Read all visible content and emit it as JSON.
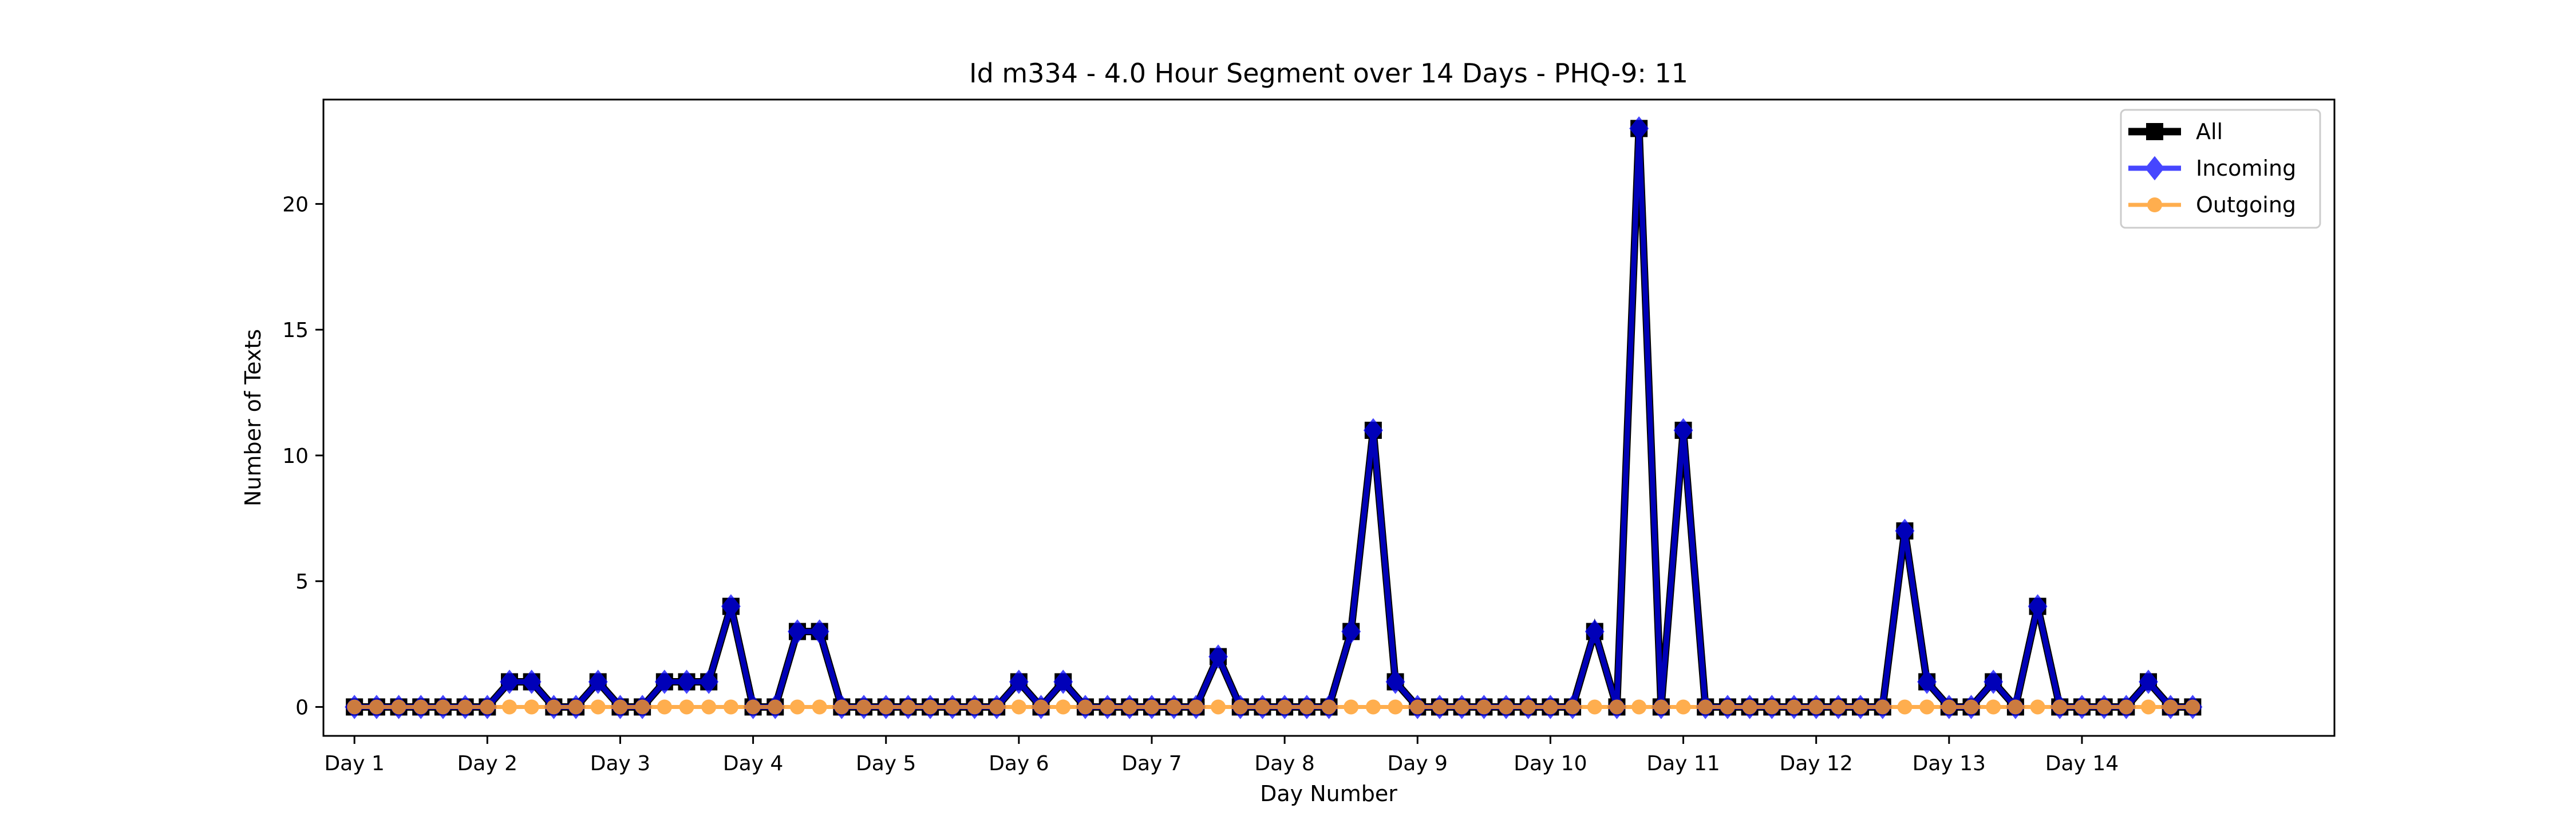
{
  "chart_data": {
    "type": "line",
    "title": "Id m334 - 4.0 Hour Segment over 14 Days - PHQ-9: 11",
    "xlabel": "Day Number",
    "ylabel": "Number of Texts",
    "xlim": [
      -1.4,
      89.4
    ],
    "ylim": [
      -1.15,
      24.15
    ],
    "x_ticks": [
      0,
      6,
      12,
      18,
      24,
      30,
      36,
      42,
      48,
      54,
      60,
      66,
      72,
      78
    ],
    "x_tick_labels": [
      "Day 1",
      "Day 2",
      "Day 3",
      "Day 4",
      "Day 5",
      "Day 6",
      "Day 7",
      "Day 8",
      "Day 9",
      "Day 10",
      "Day 11",
      "Day 12",
      "Day 13",
      "Day 14"
    ],
    "y_ticks": [
      0,
      5,
      10,
      15,
      20
    ],
    "y_tick_labels": [
      "0",
      "5",
      "10",
      "15",
      "20"
    ],
    "grid": false,
    "legend_position": "top-right",
    "series": [
      {
        "name": "All",
        "color": "#000000",
        "marker": "square",
        "values": [
          0,
          0,
          0,
          0,
          0,
          0,
          0,
          1,
          1,
          0,
          0,
          1,
          0,
          0,
          1,
          1,
          1,
          4,
          0,
          0,
          3,
          3,
          0,
          0,
          0,
          0,
          0,
          0,
          0,
          0,
          1,
          0,
          1,
          0,
          0,
          0,
          0,
          0,
          0,
          2,
          0,
          0,
          0,
          0,
          0,
          3,
          11,
          1,
          0,
          0,
          0,
          0,
          0,
          0,
          0,
          0,
          3,
          0,
          23,
          0,
          11,
          0,
          0,
          0,
          0,
          0,
          0,
          0,
          0,
          0,
          7,
          1,
          0,
          0,
          1,
          0,
          4,
          0,
          0,
          0,
          0,
          1,
          0,
          0
        ]
      },
      {
        "name": "Incoming",
        "color": "#0000ff",
        "marker": "diamond",
        "values": [
          0,
          0,
          0,
          0,
          0,
          0,
          0,
          1,
          1,
          0,
          0,
          1,
          0,
          0,
          1,
          1,
          1,
          4,
          0,
          0,
          3,
          3,
          0,
          0,
          0,
          0,
          0,
          0,
          0,
          0,
          1,
          0,
          1,
          0,
          0,
          0,
          0,
          0,
          0,
          2,
          0,
          0,
          0,
          0,
          0,
          3,
          11,
          1,
          0,
          0,
          0,
          0,
          0,
          0,
          0,
          0,
          3,
          0,
          23,
          0,
          11,
          0,
          0,
          0,
          0,
          0,
          0,
          0,
          0,
          0,
          7,
          1,
          0,
          0,
          1,
          0,
          4,
          0,
          0,
          0,
          0,
          1,
          0,
          0
        ]
      },
      {
        "name": "Outgoing",
        "color": "#ff9a22",
        "marker": "circle",
        "values": [
          0,
          0,
          0,
          0,
          0,
          0,
          0,
          0,
          0,
          0,
          0,
          0,
          0,
          0,
          0,
          0,
          0,
          0,
          0,
          0,
          0,
          0,
          0,
          0,
          0,
          0,
          0,
          0,
          0,
          0,
          0,
          0,
          0,
          0,
          0,
          0,
          0,
          0,
          0,
          0,
          0,
          0,
          0,
          0,
          0,
          0,
          0,
          0,
          0,
          0,
          0,
          0,
          0,
          0,
          0,
          0,
          0,
          0,
          0,
          0,
          0,
          0,
          0,
          0,
          0,
          0,
          0,
          0,
          0,
          0,
          0,
          0,
          0,
          0,
          0,
          0,
          0,
          0,
          0,
          0,
          0,
          0,
          0,
          0
        ]
      }
    ]
  }
}
